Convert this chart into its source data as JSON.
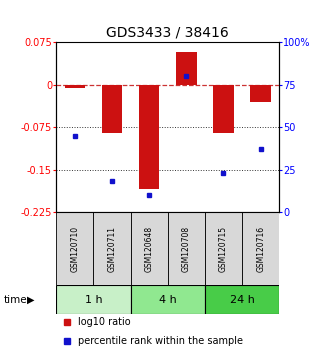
{
  "title": "GDS3433 / 38416",
  "samples": [
    "GSM120710",
    "GSM120711",
    "GSM120648",
    "GSM120708",
    "GSM120715",
    "GSM120716"
  ],
  "groups": [
    {
      "label": "1 h",
      "color": "#c8f0c8",
      "samples": [
        0,
        1
      ]
    },
    {
      "label": "4 h",
      "color": "#90e890",
      "samples": [
        2,
        3
      ]
    },
    {
      "label": "24 h",
      "color": "#48cc48",
      "samples": [
        4,
        5
      ]
    }
  ],
  "log10_ratio": [
    -0.005,
    -0.085,
    -0.185,
    0.058,
    -0.085,
    -0.03
  ],
  "percentile_rank": [
    45,
    18,
    10,
    80,
    23,
    37
  ],
  "ylim_left": [
    -0.225,
    0.075
  ],
  "ylim_right": [
    0,
    100
  ],
  "yticks_left": [
    0.075,
    0,
    -0.075,
    -0.15,
    -0.225
  ],
  "yticks_right": [
    100,
    75,
    50,
    25,
    0
  ],
  "bar_color": "#cc1111",
  "dot_color": "#1111cc",
  "hline_color": "#cc3333",
  "dotted_line_color": "#333333",
  "title_fontsize": 10,
  "tick_fontsize": 7,
  "sample_fontsize": 5.5,
  "group_fontsize": 8,
  "legend_fontsize": 7,
  "bar_width": 0.55,
  "sample_cell_color": "#d8d8d8"
}
